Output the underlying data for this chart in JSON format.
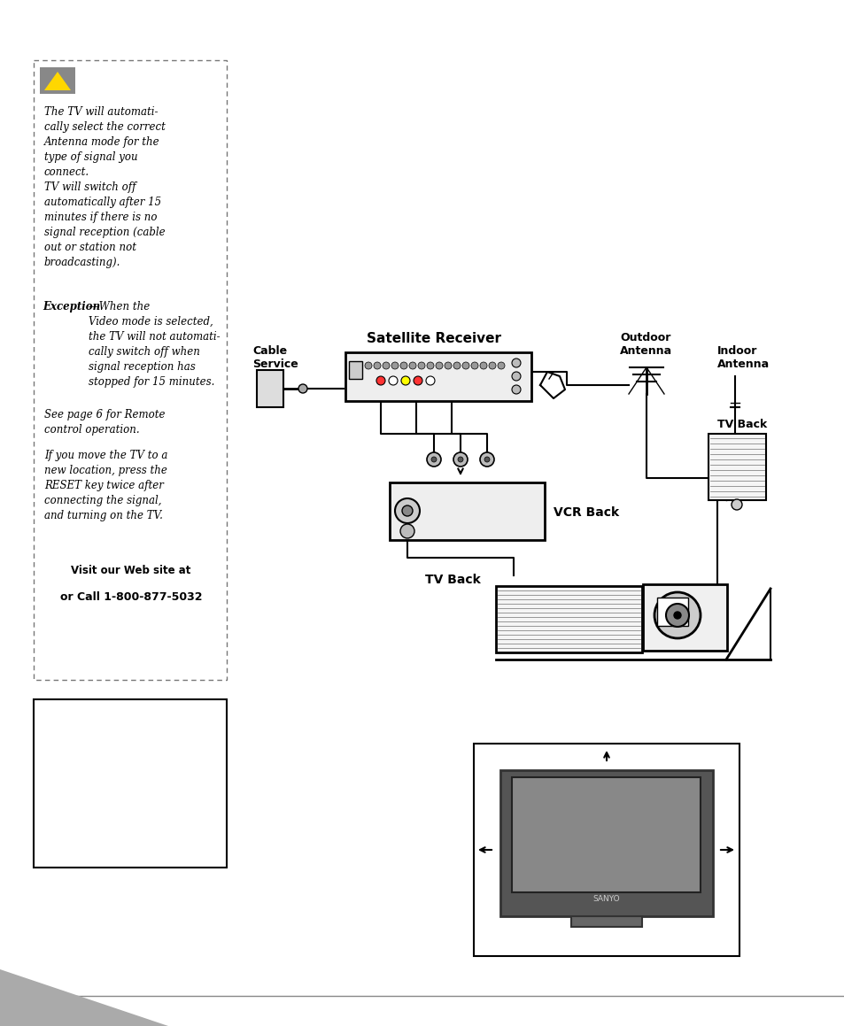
{
  "bg_color": "#ffffff",
  "sidebar_text1": "The TV will automati-\ncally select the correct\nAntenna mode for the\ntype of signal you\nconnect.",
  "sidebar_text2": "TV will switch off\nautomatically after 15\nminutes if there is no\nsignal reception (cable\nout or station not\nbroadcasting).",
  "sidebar_text3_bold": "Exception",
  "sidebar_text3_rest": "—When the\nVideo mode is selected,\nthe TV will not automati-\ncally switch off when\nsignal reception has\nstopped for 15 minutes.",
  "sidebar_text4": "See page 6 for Remote\ncontrol operation.",
  "sidebar_text5": "If you move the TV to a\nnew location, press the\nRESET key twice after\nconnecting the signal,\nand turning on the TV.",
  "sidebar_web": "Visit our Web site at",
  "sidebar_call": "or Call 1-800-877-5032",
  "label_cable": "Cable\nService",
  "label_satellite": "Satellite Receiver",
  "label_outdoor": "Outdoor\nAntenna",
  "label_indoor": "Indoor\nAntenna",
  "label_tvback1": "TV Back",
  "label_vcrback": "VCR Back",
  "label_tvback2": "TV Back",
  "footer_gray": "#aaaaaa",
  "line_color": "#000000"
}
